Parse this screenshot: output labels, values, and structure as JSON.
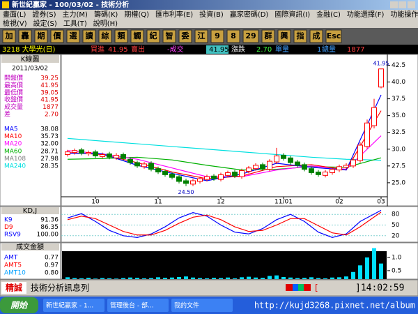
{
  "window": {
    "title": "新世紀贏家 - 100/03/02 - 技術分析"
  },
  "menu": {
    "row1": [
      "畫面(L)",
      "證券(S)",
      "主力(M)",
      "籌碼(K)",
      "期權(Q)",
      "匯市利率(E)",
      "投資(B)",
      "贏家密碼(D)",
      "國際資訊(I)",
      "金融(C)",
      "功能選擇(F)",
      "功能操作(F)"
    ],
    "row2": [
      "檢視(V)",
      "設定(S)",
      "工具(T)",
      "說明(H)"
    ]
  },
  "toolbar": [
    "加",
    "轟",
    "期",
    "價",
    "選",
    "讀",
    "綜",
    "類",
    "觸",
    "紀",
    "智",
    "委",
    "江",
    "9",
    "8",
    "29",
    "群",
    "興",
    "指",
    "成",
    "Esc"
  ],
  "quote": {
    "symbol": "3218 大學光(日)",
    "bid_label": "買進",
    "bid": "41.95",
    "ask_label": "賣出",
    "last_label": "-成交",
    "last": "41.95",
    "change_label": "漲跌",
    "change": "2.70",
    "lot_label": "單量",
    "lot": "1",
    "total_label": "總量",
    "total": "1877"
  },
  "info_panel": {
    "header": "K線圖",
    "date": "2011/03/02",
    "rows": [
      [
        "開盤價",
        "39.25"
      ],
      [
        "最高價",
        "41.95"
      ],
      [
        "最低價",
        "39.05"
      ],
      [
        "收盤價",
        "41.95"
      ],
      [
        "成交量",
        "1877"
      ],
      [
        "差",
        "2.70"
      ]
    ],
    "ma_rows": [
      [
        "MA5",
        "38.08"
      ],
      [
        "MA10",
        "35.73"
      ],
      [
        "MA20",
        "32.00"
      ],
      [
        "MA60",
        "28.71"
      ],
      [
        "MA108",
        "27.98"
      ],
      [
        "MA240",
        "28.35"
      ]
    ]
  },
  "price_chart": {
    "type": "candlestick",
    "up_color": "#ff0000",
    "down_color": "#008000",
    "open": [
      29.2,
      29.5,
      29.9,
      29.3,
      29.6,
      28.9,
      29.3,
      28.7,
      29.2,
      28.5,
      28.0,
      27.4,
      27.9,
      27.1,
      26.7,
      26.3,
      25.9,
      25.3,
      24.8,
      25.2,
      25.5,
      26.0,
      25.5,
      26.1,
      26.6,
      25.9,
      26.7,
      27.1,
      27.7,
      27.0,
      28.1,
      29.1,
      28.7,
      28.1,
      27.7,
      27.1,
      26.6,
      26.1,
      26.5,
      26.9,
      27.3,
      27.5,
      28.3,
      30.4,
      33.5,
      39.25
    ],
    "high": [
      29.9,
      30.1,
      30.2,
      29.8,
      29.9,
      29.5,
      29.6,
      29.4,
      29.5,
      28.8,
      28.3,
      28.1,
      28.2,
      27.4,
      27.0,
      26.6,
      26.2,
      25.6,
      25.6,
      25.9,
      26.2,
      26.3,
      26.5,
      26.8,
      26.9,
      27.1,
      27.5,
      27.9,
      28.0,
      28.5,
      30.2,
      29.4,
      29.0,
      28.4,
      28.0,
      27.4,
      26.9,
      26.9,
      27.3,
      27.7,
      27.9,
      28.7,
      31.0,
      34.4,
      37.5,
      41.95
    ],
    "low": [
      28.9,
      29.2,
      29.1,
      29.0,
      28.7,
      28.6,
      28.5,
      28.4,
      28.3,
      27.7,
      27.2,
      27.1,
      26.7,
      26.3,
      25.9,
      25.5,
      24.9,
      24.5,
      24.5,
      24.9,
      25.2,
      25.3,
      25.2,
      25.8,
      25.7,
      25.6,
      26.4,
      26.8,
      26.8,
      26.7,
      27.8,
      28.3,
      27.7,
      27.3,
      26.7,
      26.2,
      25.9,
      25.8,
      26.2,
      26.6,
      27.0,
      27.2,
      28.0,
      30.1,
      33.1,
      39.05
    ],
    "close": [
      29.6,
      29.8,
      29.4,
      29.5,
      29.0,
      29.2,
      28.8,
      29.1,
      28.6,
      28.0,
      27.5,
      27.8,
      27.0,
      26.6,
      26.2,
      25.8,
      25.2,
      24.9,
      25.3,
      25.6,
      25.9,
      25.6,
      26.2,
      26.5,
      26.0,
      26.8,
      27.2,
      27.6,
      27.1,
      28.2,
      29.0,
      28.6,
      28.0,
      27.6,
      27.0,
      26.5,
      26.2,
      26.6,
      27.0,
      27.4,
      27.6,
      28.4,
      30.6,
      33.9,
      36.2,
      41.95
    ],
    "ma_series": [
      {
        "name": "MA240",
        "color": "#00e0e0",
        "x": [
          0,
          5,
          10,
          15,
          20,
          25,
          30,
          35,
          40,
          45
        ],
        "values": [
          31.6,
          31.2,
          30.8,
          30.4,
          30.0,
          29.6,
          29.2,
          28.8,
          28.5,
          28.35
        ]
      },
      {
        "name": "MA60",
        "color": "#00b000",
        "x": [
          0,
          5,
          10,
          15,
          20,
          25,
          30,
          35,
          40,
          45
        ],
        "values": [
          28.5,
          28.6,
          28.8,
          28.4,
          27.6,
          26.9,
          27.0,
          27.4,
          27.3,
          28.71
        ]
      },
      {
        "name": "MA20",
        "color": "#ff00ff",
        "x": [
          0,
          5,
          10,
          15,
          20,
          25,
          30,
          35,
          40,
          45
        ],
        "values": [
          29.8,
          29.3,
          28.5,
          27.2,
          25.9,
          25.9,
          26.9,
          27.5,
          27.0,
          32.0
        ]
      },
      {
        "name": "MA10",
        "color": "#ff0000",
        "x": [
          0,
          5,
          10,
          15,
          20,
          25,
          30,
          35,
          40,
          45
        ],
        "values": [
          29.5,
          29.2,
          28.0,
          26.6,
          25.6,
          26.0,
          27.4,
          27.7,
          26.9,
          35.73
        ]
      },
      {
        "name": "MA5",
        "color": "#0000ff",
        "x": [
          0,
          5,
          10,
          15,
          20,
          25,
          30,
          35,
          40,
          45
        ],
        "values": [
          29.4,
          29.3,
          27.6,
          26.4,
          25.3,
          26.3,
          27.9,
          27.3,
          26.9,
          38.08
        ]
      }
    ],
    "ylim": [
      22.6,
      43.9
    ],
    "yticks": [
      42.5,
      {
        "value": 40,
        "label": "40.0"
      },
      37.5,
      {
        "value": 35,
        "label": "35.0"
      },
      32.5,
      {
        "value": 30,
        "label": "30.0"
      },
      27.5,
      {
        "value": 25,
        "label": "25.0"
      }
    ],
    "xticks": [
      {
        "value": 4,
        "label": "10"
      },
      {
        "value": 13,
        "label": "11"
      },
      {
        "value": 22,
        "label": "12"
      },
      {
        "value": 31,
        "label": "11/01"
      },
      {
        "value": 39,
        "label": "02"
      },
      {
        "value": 45,
        "label": "03"
      }
    ],
    "annotations": [
      {
        "text": "24.50",
        "x": 17,
        "y": 24.5
      },
      {
        "text": "41.95",
        "x": 45,
        "y": 41.95
      }
    ]
  },
  "kd_panel": {
    "header": "KD,J",
    "rows": [
      [
        "K9",
        "91.36"
      ],
      [
        "D9",
        "86.35"
      ],
      [
        "RSV9",
        "100.00"
      ]
    ],
    "ylim": [
      0,
      100
    ],
    "yticks": [
      80,
      50,
      20
    ],
    "grid": true,
    "series": [
      {
        "name": "K9",
        "color": "#0000ff",
        "x": [
          0,
          2,
          4,
          6,
          8,
          10,
          12,
          14,
          16,
          18,
          20,
          22,
          24,
          26,
          28,
          30,
          32,
          34,
          36,
          38,
          40,
          42,
          45
        ],
        "values": [
          70,
          82,
          60,
          35,
          20,
          15,
          25,
          45,
          70,
          85,
          75,
          50,
          30,
          25,
          40,
          65,
          80,
          60,
          30,
          15,
          25,
          60,
          91.36
        ]
      },
      {
        "name": "D9",
        "color": "#ff0000",
        "x": [
          0,
          2,
          4,
          6,
          8,
          10,
          12,
          14,
          16,
          18,
          20,
          22,
          24,
          26,
          28,
          30,
          32,
          34,
          36,
          38,
          40,
          42,
          45
        ],
        "values": [
          65,
          75,
          68,
          50,
          32,
          22,
          22,
          35,
          55,
          72,
          78,
          65,
          45,
          32,
          35,
          50,
          68,
          68,
          48,
          28,
          22,
          45,
          86.35
        ]
      }
    ]
  },
  "volume_panel": {
    "header": "成交金額",
    "rows": [
      [
        "AMT",
        "0.77"
      ],
      [
        "AMT5",
        "0.97"
      ],
      [
        "AMT10",
        "0.80"
      ]
    ],
    "ylim": [
      0.18,
      1.5
    ],
    "yticks": [
      {
        "value": 1,
        "label": "1.0"
      },
      0.5
    ],
    "color": "#00e0ff",
    "values": [
      0.25,
      0.22,
      0.21,
      0.23,
      0.2,
      0.22,
      0.21,
      0.2,
      0.22,
      0.24,
      0.23,
      0.21,
      0.22,
      0.25,
      0.23,
      0.24,
      0.26,
      0.28,
      0.24,
      0.22,
      0.21,
      0.23,
      0.22,
      0.24,
      0.21,
      0.25,
      0.27,
      0.24,
      0.23,
      0.3,
      0.32,
      0.26,
      0.24,
      0.22,
      0.23,
      0.25,
      0.22,
      0.21,
      0.24,
      0.25,
      0.28,
      0.45,
      0.7,
      1.0,
      1.35,
      0.77
    ]
  },
  "status_bar": {
    "brand": "精誠",
    "message": "技術分析訊息列",
    "bracket": "[",
    "time": "]14:02:59"
  },
  "taskbar": {
    "start": "開始",
    "tasks": [
      "新世紀贏家 - 1...",
      "管理後台 - 部...",
      "我的文件"
    ],
    "url": "http://kujd3268.pixnet.net/album"
  }
}
